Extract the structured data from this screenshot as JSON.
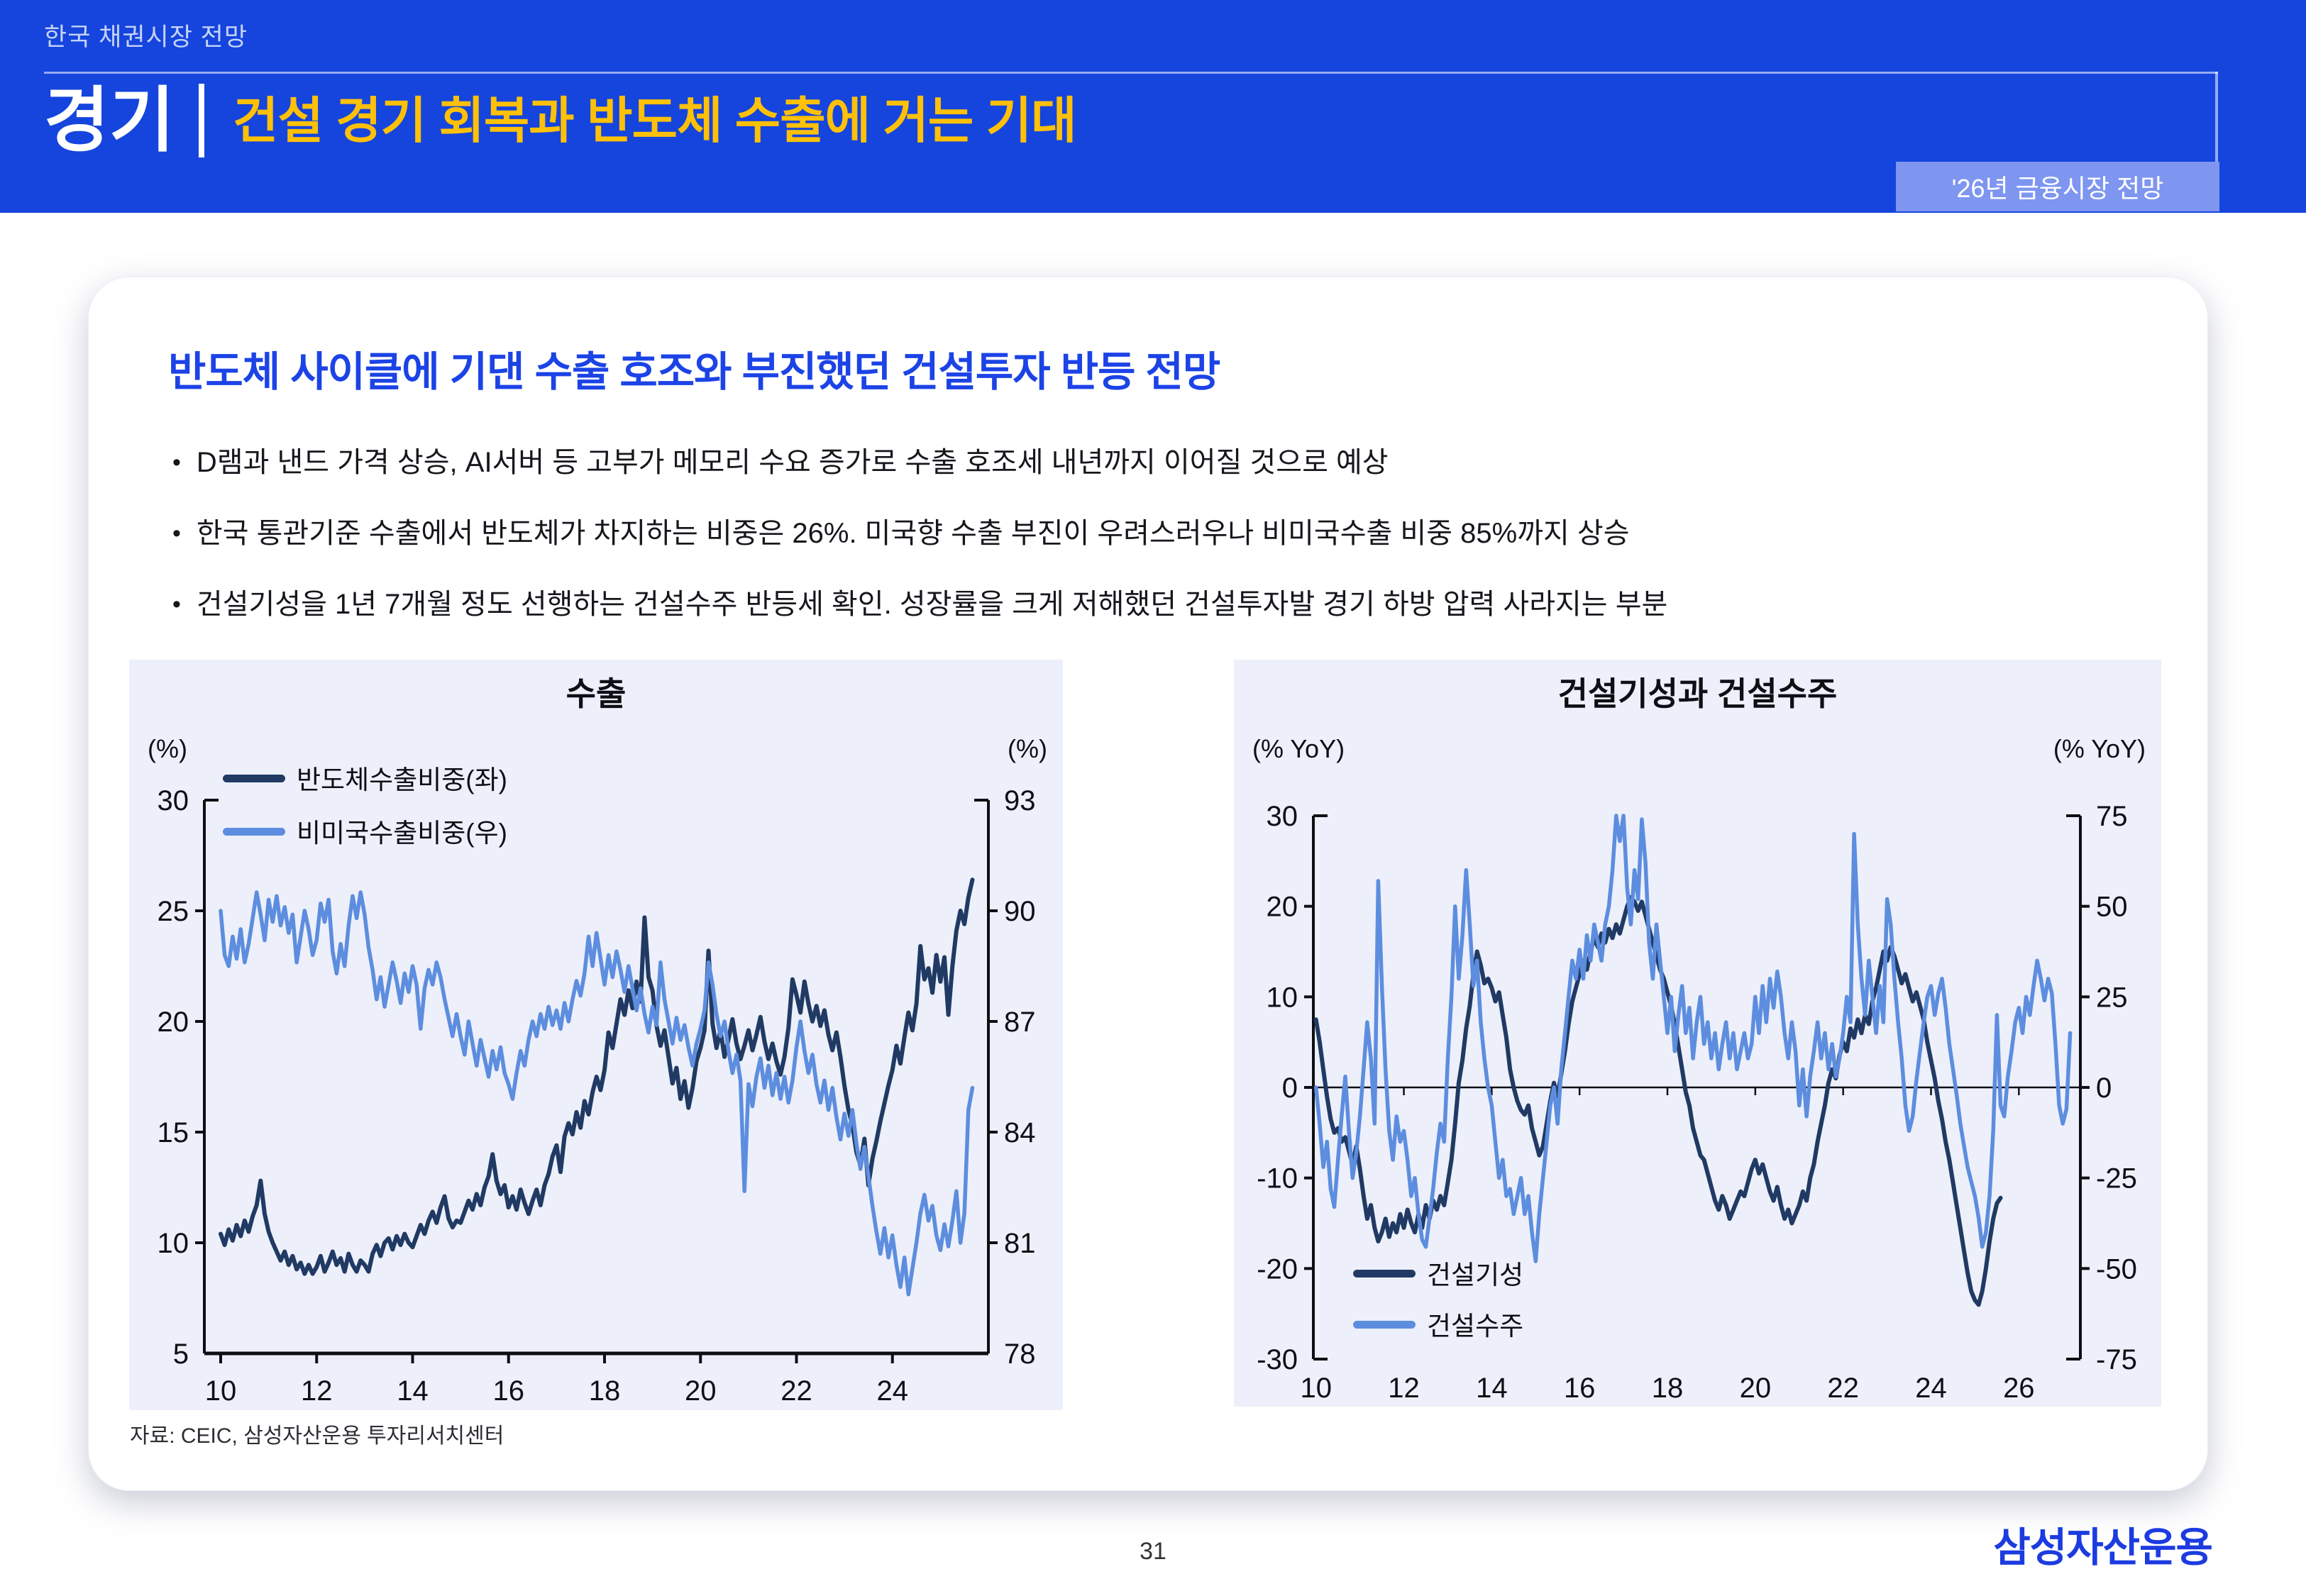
{
  "header": {
    "eyebrow": "한국 채권시장 전망",
    "section_label": "경기",
    "title": "건설 경기 회복과 반도체 수출에 거는 기대",
    "badge": "'26년 금융시장 전망",
    "colors": {
      "band_bg": "#1545dd",
      "title_accent": "#ffc008",
      "badge_bg": "#7e96f0"
    }
  },
  "card": {
    "title": "반도체 사이클에 기댄 수출 호조와 부진했던 건설투자 반등 전망",
    "bullets": [
      "D램과 낸드 가격 상승, AI서버 등 고부가 메모리 수요 증가로 수출 호조세 내년까지 이어질 것으로 예상",
      "한국 통관기준 수출에서 반도체가 차지하는 비중은 26%. 미국향 수출 부진이 우려스러우나 비미국수출 비중 85%까지 상승",
      "건설기성을 1년 7개월 정도 선행하는 건설수주 반등세 확인. 성장률을 크게 저해했던 건설투자발 경기 하방 압력 사라지는 부분"
    ],
    "source": "자료: CEIC, 삼성자산운용 투자리서치센터"
  },
  "footer": {
    "page_number": "31",
    "logo": "삼성자산운용"
  },
  "chart_data": [
    {
      "type": "line",
      "title": "수출",
      "unit_left": "(%)",
      "unit_right": "(%)",
      "xlim": [
        2009.66,
        2026.0
      ],
      "x_tick_values": [
        2010,
        2012,
        2014,
        2016,
        2018,
        2020,
        2022,
        2024
      ],
      "x_tick_labels": [
        "10",
        "12",
        "14",
        "16",
        "18",
        "20",
        "22",
        "24"
      ],
      "left_axis": {
        "lim": [
          5,
          30
        ],
        "ticks": [
          5,
          10,
          15,
          20,
          25,
          30
        ]
      },
      "right_axis": {
        "lim": [
          78,
          93
        ],
        "ticks": [
          78,
          81,
          84,
          87,
          90,
          93
        ]
      },
      "bottom_frame": true,
      "zero_axis": false,
      "grid": false,
      "legend_pos": "top-left",
      "panel_bg": "#edf0fa",
      "series": [
        {
          "name": "반도체수출비중(좌)",
          "axis": "left",
          "color": "#203a64",
          "width": 6,
          "x_start": 2010.0,
          "x_step_months": 1,
          "values": [
            10.4,
            9.9,
            10.6,
            10.1,
            10.8,
            10.3,
            11.0,
            10.5,
            11.2,
            11.7,
            12.8,
            11.3,
            10.5,
            10.0,
            9.6,
            9.2,
            9.6,
            9.0,
            9.4,
            8.8,
            9.1,
            8.6,
            9.0,
            8.6,
            8.9,
            9.4,
            8.7,
            9.1,
            9.6,
            9.0,
            9.3,
            8.7,
            9.5,
            9.0,
            8.7,
            9.2,
            9.0,
            8.7,
            9.5,
            9.9,
            9.4,
            10.0,
            10.2,
            9.7,
            10.3,
            9.9,
            10.4,
            10.0,
            9.8,
            10.3,
            10.8,
            10.4,
            11.0,
            11.4,
            10.9,
            11.6,
            12.1,
            11.1,
            10.7,
            11.0,
            10.9,
            11.4,
            11.9,
            11.5,
            12.2,
            11.7,
            12.5,
            13.0,
            14.0,
            12.8,
            12.2,
            12.6,
            11.6,
            12.1,
            11.5,
            12.4,
            11.8,
            11.3,
            11.9,
            12.4,
            11.7,
            12.6,
            13.1,
            13.9,
            14.4,
            13.2,
            14.8,
            15.4,
            14.9,
            15.9,
            15.2,
            16.4,
            15.8,
            16.8,
            17.5,
            16.9,
            17.8,
            19.5,
            18.8,
            19.9,
            21.0,
            20.3,
            21.4,
            20.6,
            21.8,
            20.9,
            24.7,
            22.0,
            21.4,
            19.8,
            18.9,
            19.6,
            18.4,
            17.2,
            17.9,
            16.5,
            17.3,
            16.1,
            17.0,
            18.2,
            18.8,
            19.6,
            23.2,
            19.9,
            18.8,
            19.6,
            18.4,
            19.2,
            20.1,
            19.0,
            18.3,
            18.9,
            19.6,
            18.7,
            19.4,
            20.2,
            19.1,
            18.3,
            19.0,
            18.2,
            17.6,
            18.4,
            19.7,
            21.9,
            21.2,
            20.4,
            21.8,
            20.8,
            20.0,
            20.7,
            19.8,
            20.5,
            19.4,
            18.7,
            19.5,
            18.4,
            17.1,
            16.0,
            15.3,
            14.1,
            13.5,
            14.7,
            12.6,
            13.8,
            14.6,
            15.5,
            16.3,
            17.1,
            17.8,
            18.9,
            18.1,
            19.3,
            20.4,
            19.6,
            20.8,
            23.4,
            21.9,
            22.4,
            21.3,
            23.0,
            21.8,
            22.9,
            20.3,
            22.5,
            24.1,
            25.0,
            24.4,
            25.6,
            26.4
          ]
        },
        {
          "name": "비미국수출비중(우)",
          "axis": "right",
          "color": "#5d8ddf",
          "width": 5.5,
          "x_start": 2010.0,
          "x_step_months": 1,
          "values": [
            90.0,
            88.8,
            88.5,
            89.3,
            88.7,
            89.5,
            88.6,
            89.1,
            89.8,
            90.5,
            89.9,
            89.2,
            90.3,
            89.7,
            90.4,
            89.6,
            90.1,
            89.4,
            89.9,
            88.6,
            89.3,
            90.0,
            89.5,
            88.8,
            89.2,
            90.2,
            89.7,
            90.3,
            88.9,
            88.3,
            89.1,
            88.5,
            89.6,
            90.4,
            89.8,
            90.5,
            89.9,
            89.0,
            88.4,
            87.6,
            88.2,
            87.4,
            88.0,
            88.6,
            88.1,
            87.5,
            88.3,
            87.8,
            88.5,
            88.0,
            86.8,
            87.9,
            88.4,
            88.0,
            88.6,
            88.2,
            87.6,
            87.1,
            86.6,
            87.2,
            86.6,
            86.1,
            87.0,
            86.4,
            85.8,
            86.5,
            86.0,
            85.5,
            86.2,
            85.7,
            86.3,
            85.6,
            85.3,
            84.9,
            85.6,
            86.2,
            85.8,
            86.5,
            87.0,
            86.6,
            87.2,
            86.8,
            87.4,
            86.9,
            87.3,
            86.8,
            87.5,
            87.0,
            87.6,
            88.1,
            87.7,
            88.3,
            89.3,
            88.5,
            89.4,
            88.7,
            88.0,
            88.8,
            88.2,
            88.9,
            88.4,
            87.8,
            88.5,
            87.9,
            87.3,
            87.9,
            87.2,
            86.7,
            87.4,
            86.9,
            88.6,
            87.6,
            87.0,
            86.4,
            87.1,
            86.5,
            86.9,
            86.3,
            85.8,
            86.4,
            86.8,
            87.3,
            88.6,
            88.0,
            87.2,
            86.6,
            87.0,
            86.2,
            85.6,
            86.1,
            85.4,
            82.4,
            85.3,
            84.7,
            85.5,
            86.0,
            85.2,
            85.8,
            85.0,
            85.6,
            84.9,
            85.5,
            84.8,
            85.4,
            86.3,
            87.0,
            86.2,
            85.6,
            86.1,
            85.3,
            84.8,
            85.4,
            84.6,
            85.2,
            84.4,
            83.8,
            84.5,
            83.9,
            84.6,
            83.7,
            83.0,
            83.6,
            82.8,
            82.0,
            81.3,
            80.7,
            81.4,
            80.6,
            81.2,
            80.4,
            79.8,
            80.6,
            79.6,
            80.3,
            81.0,
            81.8,
            82.3,
            81.6,
            82.0,
            81.2,
            80.8,
            81.5,
            80.9,
            81.6,
            82.4,
            81.0,
            81.8,
            84.6,
            85.2
          ]
        }
      ]
    },
    {
      "type": "line",
      "title": "건설기성과 건설수주",
      "unit_left": "(% YoY)",
      "unit_right": "(% YoY)",
      "xlim": [
        2009.94,
        2027.4
      ],
      "x_tick_values": [
        2010,
        2012,
        2014,
        2016,
        2018,
        2020,
        2022,
        2024,
        2026
      ],
      "x_tick_labels": [
        "10",
        "12",
        "14",
        "16",
        "18",
        "20",
        "22",
        "24",
        "26"
      ],
      "left_axis": {
        "lim": [
          -30,
          30
        ],
        "ticks": [
          -30,
          -20,
          -10,
          0,
          10,
          20,
          30
        ]
      },
      "right_axis": {
        "lim": [
          -75,
          75
        ],
        "ticks": [
          -75,
          -50,
          -25,
          0,
          25,
          50,
          75
        ]
      },
      "bottom_frame": false,
      "zero_axis": true,
      "grid": false,
      "legend_pos": "bottom-left",
      "panel_bg": "#edf0fa",
      "series": [
        {
          "name": "건설기성",
          "axis": "left",
          "color": "#203a64",
          "width": 6,
          "x_start": 2010.0,
          "x_step_months": 1,
          "values": [
            7.5,
            5.0,
            2.0,
            -1.0,
            -3.5,
            -5.0,
            -4.5,
            -6.0,
            -5.5,
            -7.0,
            -8.5,
            -6.5,
            -9.0,
            -12.0,
            -14.5,
            -13.0,
            -15.5,
            -17.0,
            -16.0,
            -14.5,
            -16.5,
            -15.0,
            -16.0,
            -14.0,
            -15.5,
            -13.5,
            -15.0,
            -16.0,
            -14.0,
            -15.5,
            -13.0,
            -14.5,
            -12.5,
            -13.5,
            -12.0,
            -13.0,
            -10.5,
            -8.0,
            -4.0,
            0.5,
            3.0,
            6.5,
            9.0,
            12.5,
            15.0,
            13.5,
            11.5,
            12.0,
            11.0,
            9.5,
            10.5,
            8.0,
            5.5,
            2.0,
            0.0,
            -1.5,
            -2.5,
            -3.0,
            -2.0,
            -4.5,
            -6.0,
            -7.5,
            -6.5,
            -4.0,
            -1.5,
            0.5,
            -1.0,
            1.5,
            4.0,
            7.0,
            9.5,
            11.0,
            12.5,
            14.0,
            13.0,
            15.0,
            16.5,
            15.5,
            17.0,
            16.0,
            17.5,
            16.5,
            18.0,
            17.0,
            18.5,
            20.0,
            21.0,
            20.5,
            19.5,
            20.5,
            19.0,
            17.5,
            16.0,
            14.5,
            13.0,
            12.0,
            10.5,
            9.0,
            7.0,
            4.5,
            2.0,
            -0.5,
            -2.0,
            -4.5,
            -6.0,
            -7.5,
            -8.0,
            -9.5,
            -11.0,
            -12.5,
            -13.5,
            -12.0,
            -13.0,
            -14.5,
            -13.5,
            -12.5,
            -11.5,
            -12.0,
            -10.5,
            -9.0,
            -8.0,
            -9.5,
            -8.5,
            -10.0,
            -11.5,
            -12.5,
            -11.0,
            -13.0,
            -14.5,
            -13.5,
            -15.0,
            -14.0,
            -13.0,
            -11.5,
            -12.5,
            -10.0,
            -8.5,
            -6.0,
            -4.0,
            -2.0,
            0.5,
            2.0,
            1.0,
            3.5,
            5.0,
            4.0,
            6.5,
            5.5,
            7.5,
            6.0,
            8.0,
            7.0,
            9.5,
            11.0,
            13.0,
            15.0,
            14.0,
            15.5,
            14.5,
            13.0,
            11.5,
            12.5,
            11.0,
            9.5,
            10.5,
            9.0,
            7.5,
            5.0,
            3.0,
            1.0,
            -1.5,
            -3.5,
            -6.0,
            -8.0,
            -10.5,
            -13.0,
            -15.5,
            -18.0,
            -20.5,
            -22.5,
            -23.5,
            -24.0,
            -22.5,
            -20.0,
            -17.0,
            -14.5,
            -12.8,
            -12.2
          ]
        },
        {
          "name": "건설수주",
          "axis": "right",
          "color": "#5d8ddf",
          "width": 5.5,
          "x_start": 2010.0,
          "x_step_months": 1,
          "values": [
            0,
            -10,
            -22,
            -15,
            -28,
            -33,
            -20,
            -8,
            3,
            -12,
            -25,
            -18,
            -8,
            5,
            18,
            8,
            -10,
            57,
            28,
            5,
            -12,
            -20,
            -8,
            -15,
            -12,
            -20,
            -30,
            -25,
            -35,
            -42,
            -44,
            -36,
            -28,
            -18,
            -10,
            -15,
            8,
            25,
            50,
            30,
            42,
            60,
            45,
            28,
            35,
            18,
            8,
            0,
            -5,
            -15,
            -25,
            -20,
            -30,
            -28,
            -35,
            -30,
            -25,
            -35,
            -30,
            -40,
            -48,
            -35,
            -25,
            -15,
            -5,
            0,
            -10,
            5,
            15,
            25,
            35,
            30,
            38,
            30,
            42,
            35,
            45,
            40,
            35,
            45,
            50,
            60,
            75,
            68,
            75,
            55,
            45,
            60,
            52,
            74,
            62,
            40,
            30,
            45,
            35,
            25,
            15,
            25,
            10,
            20,
            28,
            15,
            22,
            8,
            18,
            25,
            12,
            18,
            8,
            15,
            5,
            12,
            18,
            8,
            15,
            5,
            10,
            15,
            8,
            12,
            25,
            15,
            28,
            18,
            30,
            22,
            32,
            25,
            15,
            8,
            18,
            10,
            -5,
            5,
            -8,
            3,
            10,
            18,
            8,
            15,
            5,
            12,
            3,
            8,
            15,
            25,
            18,
            70,
            45,
            30,
            20,
            35,
            25,
            15,
            28,
            18,
            52,
            45,
            30,
            18,
            8,
            -5,
            -12,
            -8,
            2,
            10,
            18,
            25,
            28,
            20,
            26,
            30,
            22,
            12,
            5,
            -2,
            -10,
            -16,
            -22,
            -26,
            -30,
            -36,
            -44,
            -40,
            -30,
            -12,
            20,
            -5,
            -8,
            3,
            10,
            18,
            22,
            15,
            25,
            20,
            28,
            35,
            30,
            24,
            30,
            26,
            12,
            -5,
            -10,
            -6,
            15
          ]
        }
      ]
    }
  ]
}
